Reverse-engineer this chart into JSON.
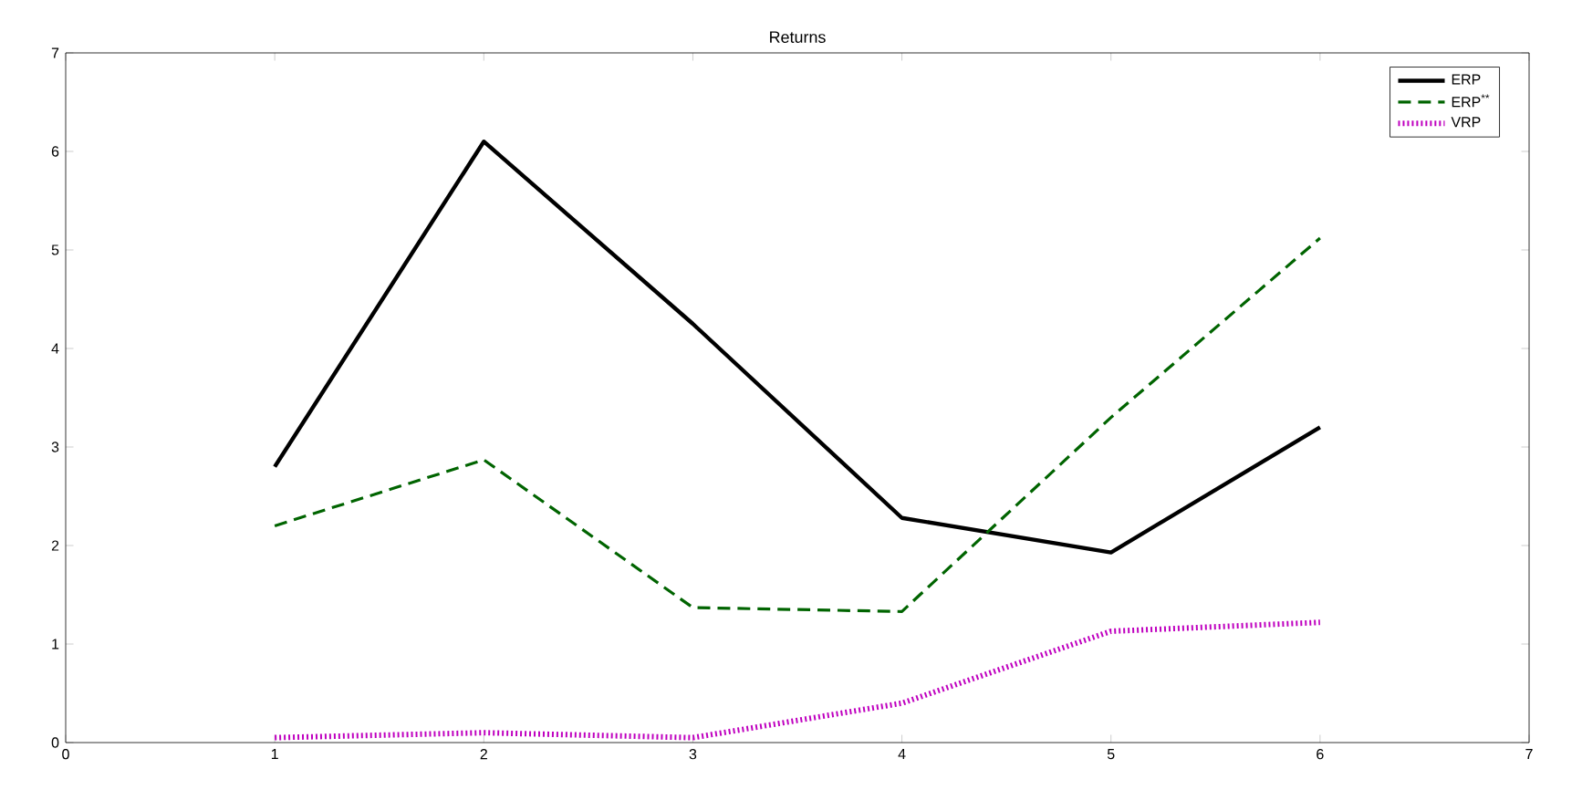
{
  "chart_data": {
    "type": "line",
    "title": "Returns",
    "x": [
      1,
      2,
      3,
      4,
      5,
      6
    ],
    "series": [
      {
        "name": "ERP",
        "color": "#000000",
        "line_style": "solid",
        "values": [
          2.8,
          6.1,
          4.25,
          2.28,
          1.93,
          3.2
        ]
      },
      {
        "name": "ERP$^{**}$",
        "color": "#006400",
        "line_style": "dashed",
        "values": [
          2.2,
          2.87,
          1.37,
          1.33,
          3.3,
          5.12
        ]
      },
      {
        "name": "VRP",
        "color": "#bf00bf",
        "line_style": "dotted",
        "values": [
          0.05,
          0.1,
          0.05,
          0.4,
          1.13,
          1.22
        ]
      }
    ],
    "xlim": [
      0,
      7
    ],
    "ylim": [
      0,
      7
    ],
    "xticks": [
      0,
      1,
      2,
      3,
      4,
      5,
      6,
      7
    ],
    "yticks": [
      0,
      1,
      2,
      3,
      4,
      5,
      6,
      7
    ],
    "grid": false,
    "legend": "top right",
    "marker": "none"
  }
}
